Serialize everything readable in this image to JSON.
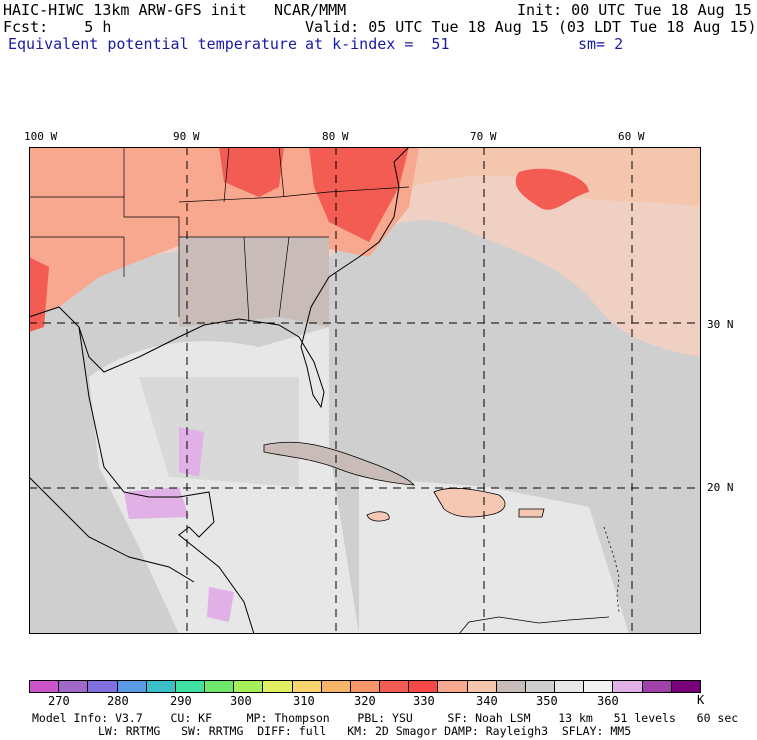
{
  "header": {
    "model_title": "HAIC-HIWC 13km ARW-GFS init",
    "org": "NCAR/MMM",
    "init": "Init: 00 UTC Tue 18 Aug 15",
    "fcst_label": "Fcst:",
    "fcst_value": "5 h",
    "valid": "Valid: 05 UTC Tue 18 Aug 15 (03 LDT Tue 18 Aug 15)",
    "field": "Equivalent potential temperature",
    "level": "at k-index =  51",
    "smooth": "sm= 2"
  },
  "map": {
    "lon_labels": [
      "100 W",
      "90 W",
      "80 W",
      "70 W",
      "60 W"
    ],
    "lat_labels": [
      "30 N",
      "20 N"
    ],
    "colors": {
      "land_high": "#f5c8b4",
      "warm": "#fa9a7f",
      "hot": "#f0423c",
      "mid": "#c8bdbb",
      "cool": "#d9d9d9",
      "light": "#eeeeee",
      "lilac": "#d9a9e0",
      "ocean_pink": "#efd0c3"
    }
  },
  "colorbar": {
    "colors": [
      "#cc55cc",
      "#a068c8",
      "#8070e0",
      "#5a9ae6",
      "#3cc0c8",
      "#40e0a0",
      "#6ee86a",
      "#a6ee5a",
      "#e4f064",
      "#f8d470",
      "#f7b56a",
      "#f6966a",
      "#f25c52",
      "#f74848",
      "#f9a890",
      "#f4c6ae",
      "#c9bcb8",
      "#cfcfcf",
      "#e7e7e7",
      "#f2f2f2",
      "#e0b0e6",
      "#a040a8",
      "#780078"
    ],
    "ticks": [
      "270",
      "280",
      "290",
      "300",
      "310",
      "320",
      "330",
      "340",
      "350",
      "360",
      "K"
    ]
  },
  "footer": {
    "line1": "Model Info: V3.7    CU: KF     MP: Thompson    PBL: YSU     SF: Noah LSM    13 km   51 levels   60 sec",
    "line2": "LW: RRTMG   SW: RRTMG  DIFF: full   KM: 2D Smagor DAMP: Rayleigh3  SFLAY: MM5"
  }
}
